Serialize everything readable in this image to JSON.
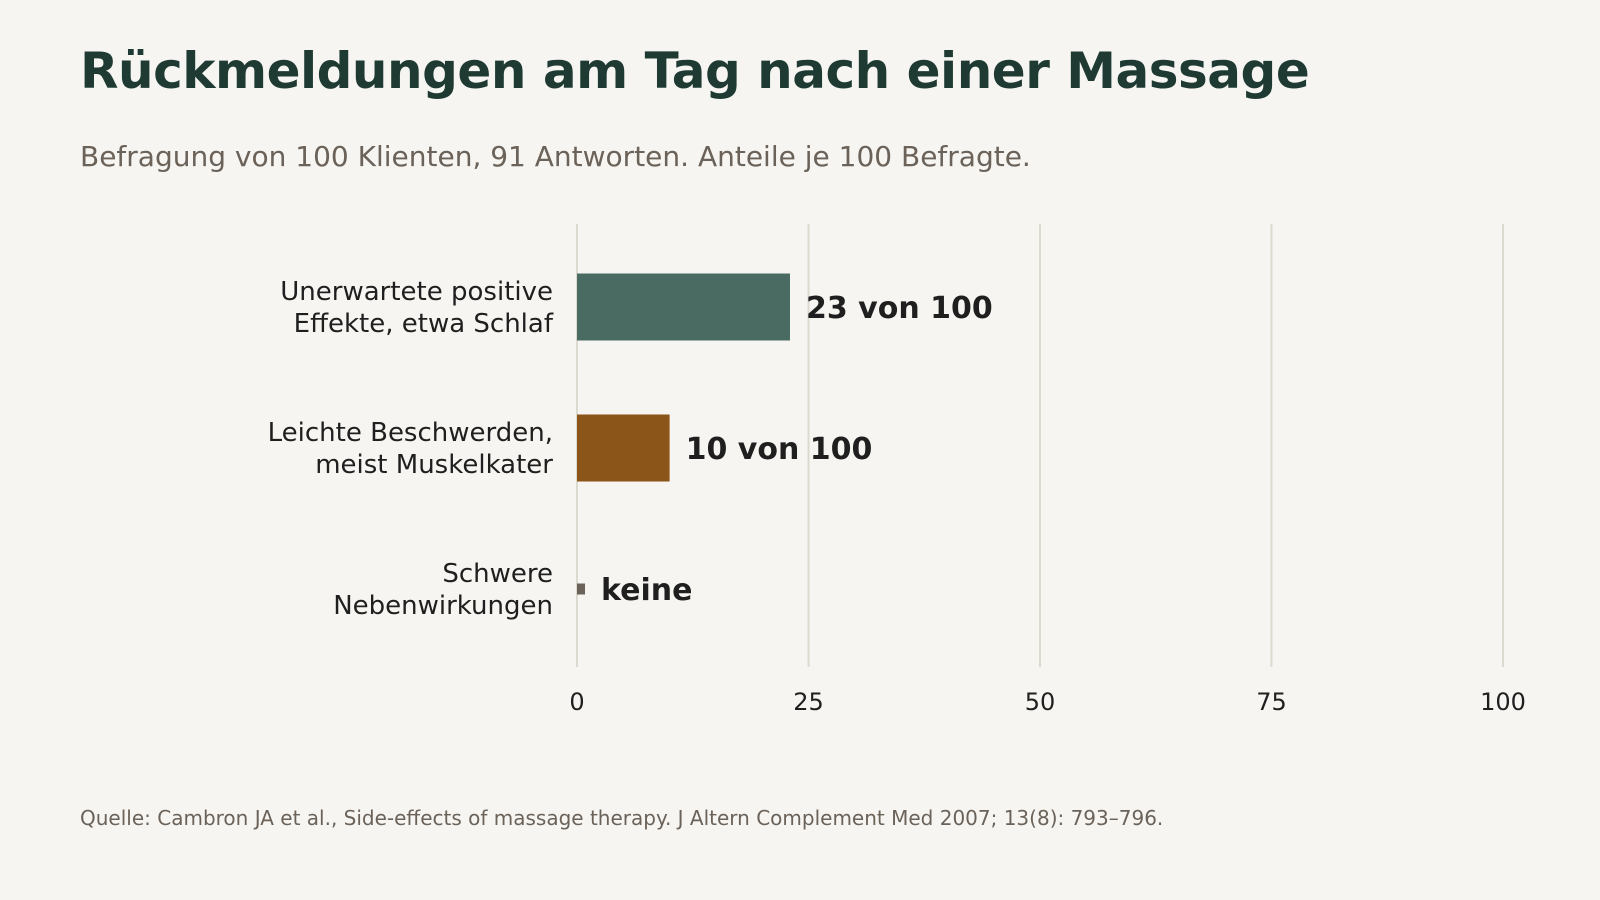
{
  "title": "Rückmeldungen am Tag nach einer Massage",
  "subtitle": "Befragung von 100 Klienten, 91 Antworten. Anteile je 100 Befragte.",
  "source": "Quelle: Cambron JA et al., Side-effects of massage therapy. J Altern Complement Med 2007; 13(8): 793–796.",
  "chart_data": {
    "type": "bar",
    "orientation": "horizontal",
    "title": "Rückmeldungen am Tag nach einer Massage",
    "subtitle": "Befragung von 100 Klienten, 91 Antworten. Anteile je 100 Befragte.",
    "categories": [
      [
        "Unerwartete positive",
        "Effekte, etwa Schlaf"
      ],
      [
        "Leichte Beschwerden,",
        "meist Muskelkater"
      ],
      [
        "Schwere",
        "Nebenwirkungen"
      ]
    ],
    "values": [
      23,
      10,
      0
    ],
    "value_labels": [
      "23 von 100",
      "10 von 100",
      "keine"
    ],
    "colors": [
      "#4a6b62",
      "#8b5418",
      "#6b6259"
    ],
    "xlim": [
      0,
      100
    ],
    "xticks": [
      0,
      25,
      50,
      75,
      100
    ],
    "xtick_labels": [
      "0",
      "25",
      "50",
      "75",
      "100"
    ],
    "grid": true,
    "legend": "none",
    "xlabel": "",
    "ylabel": ""
  }
}
